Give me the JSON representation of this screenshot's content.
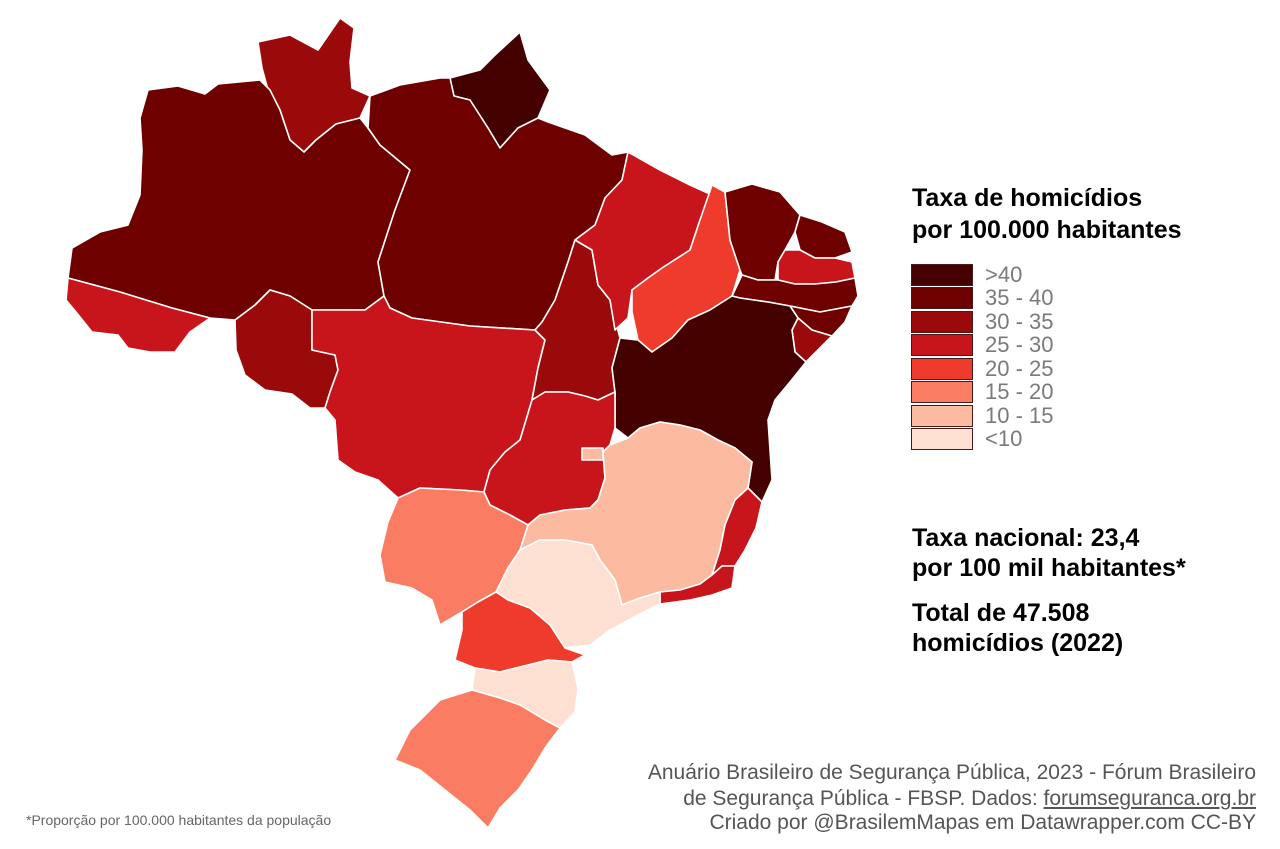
{
  "legend": {
    "title_line1": "Taxa de homicídios",
    "title_line2": "por 100.000 habitantes",
    "classes": [
      {
        "label": ">40",
        "color": "#450000"
      },
      {
        "label": "35 - 40",
        "color": "#6e0000"
      },
      {
        "label": "30 - 35",
        "color": "#9a0a0a"
      },
      {
        "label": "25 - 30",
        "color": "#c8151b"
      },
      {
        "label": "20 - 25",
        "color": "#ee3b2c"
      },
      {
        "label": "15 - 20",
        "color": "#fa7c63"
      },
      {
        "label": "10 - 15",
        "color": "#fcbba1"
      },
      {
        "label": "<10",
        "color": "#fee0d2"
      }
    ]
  },
  "stats": {
    "national_rate_line1": "Taxa nacional: 23,4",
    "national_rate_line2": "por 100 mil habitantes*",
    "total_line1": "Total de 47.508",
    "total_line2": "homicídios (2022)"
  },
  "source": {
    "line1": "Anuário Brasileiro de Segurança Pública, 2023 - Fórum Brasileiro",
    "line2_prefix": "de  Segurança Pública  - FBSP. Dados: ",
    "line2_link": "forumseguranca.org.br",
    "credit": "Criado por @BrasilemMapas em Datawrapper.com CC-BY"
  },
  "footnote": "*Proporção por 100.000 habitantes da população",
  "states": [
    {
      "id": "RR",
      "class": "30 - 35",
      "color": "#9a0a0a"
    },
    {
      "id": "AP",
      "class": ">40",
      "color": "#450000"
    },
    {
      "id": "AM",
      "class": "35 - 40",
      "color": "#6e0000"
    },
    {
      "id": "PA",
      "class": "35 - 40",
      "color": "#6e0000"
    },
    {
      "id": "AC",
      "class": "25 - 30",
      "color": "#c8151b"
    },
    {
      "id": "RO",
      "class": "30 - 35",
      "color": "#9a0a0a"
    },
    {
      "id": "MT",
      "class": "25 - 30",
      "color": "#c8151b"
    },
    {
      "id": "TO",
      "class": "30 - 35",
      "color": "#9a0a0a"
    },
    {
      "id": "MA",
      "class": "25 - 30",
      "color": "#c8151b"
    },
    {
      "id": "PI",
      "class": "20 - 25",
      "color": "#ee3b2c"
    },
    {
      "id": "CE",
      "class": "35 - 40",
      "color": "#6e0000"
    },
    {
      "id": "RN",
      "class": "35 - 40",
      "color": "#6e0000"
    },
    {
      "id": "PB",
      "class": "25 - 30",
      "color": "#c8151b"
    },
    {
      "id": "PE",
      "class": "35 - 40",
      "color": "#6e0000"
    },
    {
      "id": "AL",
      "class": "35 - 40",
      "color": "#6e0000"
    },
    {
      "id": "SE",
      "class": "30 - 35",
      "color": "#9a0a0a"
    },
    {
      "id": "BA",
      "class": ">40",
      "color": "#450000"
    },
    {
      "id": "GO",
      "class": "25 - 30",
      "color": "#c8151b"
    },
    {
      "id": "DF",
      "class": "10 - 15",
      "color": "#fcbba1"
    },
    {
      "id": "MS",
      "class": "15 - 20",
      "color": "#fa7c63"
    },
    {
      "id": "MG",
      "class": "10 - 15",
      "color": "#fcbba1"
    },
    {
      "id": "ES",
      "class": "25 - 30",
      "color": "#c8151b"
    },
    {
      "id": "RJ",
      "class": "25 - 30",
      "color": "#c8151b"
    },
    {
      "id": "SP",
      "class": "<10",
      "color": "#fee0d2"
    },
    {
      "id": "PR",
      "class": "20 - 25",
      "color": "#ee3b2c"
    },
    {
      "id": "SC",
      "class": "<10",
      "color": "#fee0d2"
    },
    {
      "id": "RS",
      "class": "15 - 20",
      "color": "#fa7c63"
    }
  ]
}
